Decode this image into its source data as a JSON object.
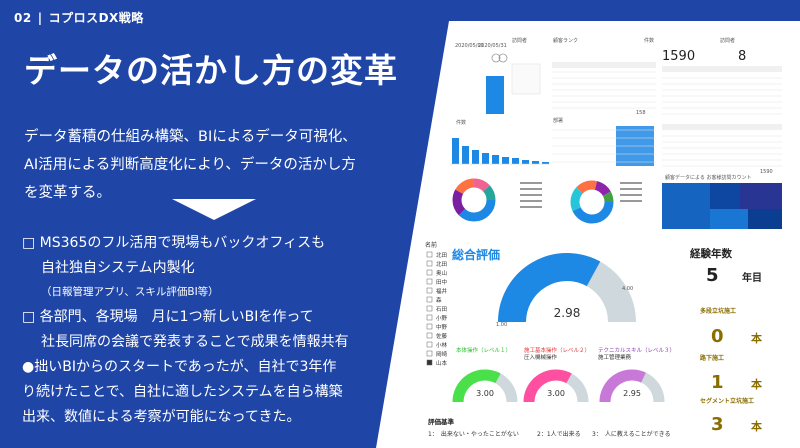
{
  "header": {
    "number": "02",
    "separator": "|",
    "section": "コプロスDX戦略"
  },
  "title": "データの活かし方の変革",
  "intro": [
    "データ蓄積の仕組み構築、BIによるデータ可視化、",
    "AI活用による判断高度化により、データの活かし方",
    "を変革する。"
  ],
  "bullets": {
    "b1_line1": "□ MS365のフル活用で現場もバックオフィスも",
    "b1_line2": "自社独自システム内製化",
    "b1_line3": "（日報管理アプリ、スキル評価BI等）",
    "b2_line1": "□ 各部門、各現場　月に1つ新しいBIを作って",
    "b2_line2": "社長同席の会議で発表することで成果を情報共有",
    "b3_line1": "●拙いBIからのスタートであったが、自社で3年作",
    "b3_line2": "り続けたことで、自社に適したシステムを自ら構築",
    "b3_line3": "出来、数値による考察が可能になってきた。"
  },
  "dashboard_top": {
    "kpi1": "1590",
    "kpi2": "8",
    "small_labels": [
      "訪問者",
      "顧客ランク",
      "件数",
      "訪問者",
      "件数",
      "部署",
      "訪問者",
      "訪問者",
      "顧客データによる お客様訪問カウント"
    ],
    "totals": [
      "1590",
      "158",
      "1590"
    ]
  },
  "skill_bi": {
    "list_title": "名前",
    "names": [
      "北田",
      "北田",
      "奥山",
      "田中",
      "福井",
      "森",
      "石田",
      "小野",
      "中野",
      "佐藤",
      "小林",
      "岡崎",
      "山本"
    ],
    "title": "総合評価",
    "overall_value": "2.98",
    "overall_min": "1.00",
    "overall_max": "4.00",
    "overall_level": 0.66,
    "gauges": [
      {
        "title": "本体操作（レベル１）",
        "value": "3.00",
        "level": 0.66,
        "color": "#49e04a",
        "title_color": "#2bbf2b"
      },
      {
        "title": "施工基本操作（レベル２）",
        "subtitle": "圧入機械操作",
        "value": "3.00",
        "level": 0.66,
        "color": "#ff4fa0",
        "title_color": "#e03a3a"
      },
      {
        "title": "テクニカルスキル（レベル３）",
        "subtitle": "施工管理業務",
        "value": "2.95",
        "level": 0.64,
        "color": "#c879d8",
        "title_color": "#8a3fb0"
      }
    ],
    "criteria_title": "評価基準",
    "criteria": [
      "1：　出来ない・やったことがない",
      "2：1人で出来る",
      "3：　人に教えることができる"
    ]
  },
  "experience": {
    "title": "経験年数",
    "years": "5",
    "years_unit": "年目",
    "items": [
      {
        "label": "多段立坑施工",
        "value": "0",
        "unit": "本"
      },
      {
        "label": "路下施工",
        "value": "1",
        "unit": "本"
      },
      {
        "label": "セグメント立坑施工",
        "value": "3",
        "unit": "本"
      }
    ]
  },
  "colors": {
    "background": "#1f45a7",
    "accent": "#1e88e5",
    "kpi_gold": "#8a6d00"
  }
}
